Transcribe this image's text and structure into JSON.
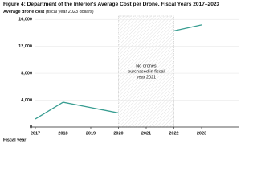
{
  "chart_data": {
    "type": "line",
    "title": "Figure 4: Department of the Interior's Average Cost per Drone, Fiscal Years 2017–2023",
    "y_label": "Average drone cost",
    "y_label_note": "(fiscal year 2023 dollars)",
    "x_label": "Fiscal year",
    "categories": [
      "2017",
      "2018",
      "2019",
      "2020",
      "2021",
      "2022",
      "2023"
    ],
    "series": [
      {
        "name": "Average cost per drone",
        "color": "#3a9e92",
        "values": [
          1200,
          3700,
          2900,
          2100,
          null,
          14300,
          15200
        ]
      }
    ],
    "ylim": [
      0,
      16500
    ],
    "yticks": [
      0,
      {
        "value": 4000,
        "label": "4,000"
      },
      {
        "value": 8000,
        "label": "8,000"
      },
      {
        "value": 12000,
        "label": "12,000"
      },
      {
        "value": 16000,
        "label": "16,000"
      }
    ],
    "grid": true,
    "annotation": {
      "lines": [
        "No drones",
        "purchased in fiscal",
        "year 2021"
      ]
    }
  }
}
